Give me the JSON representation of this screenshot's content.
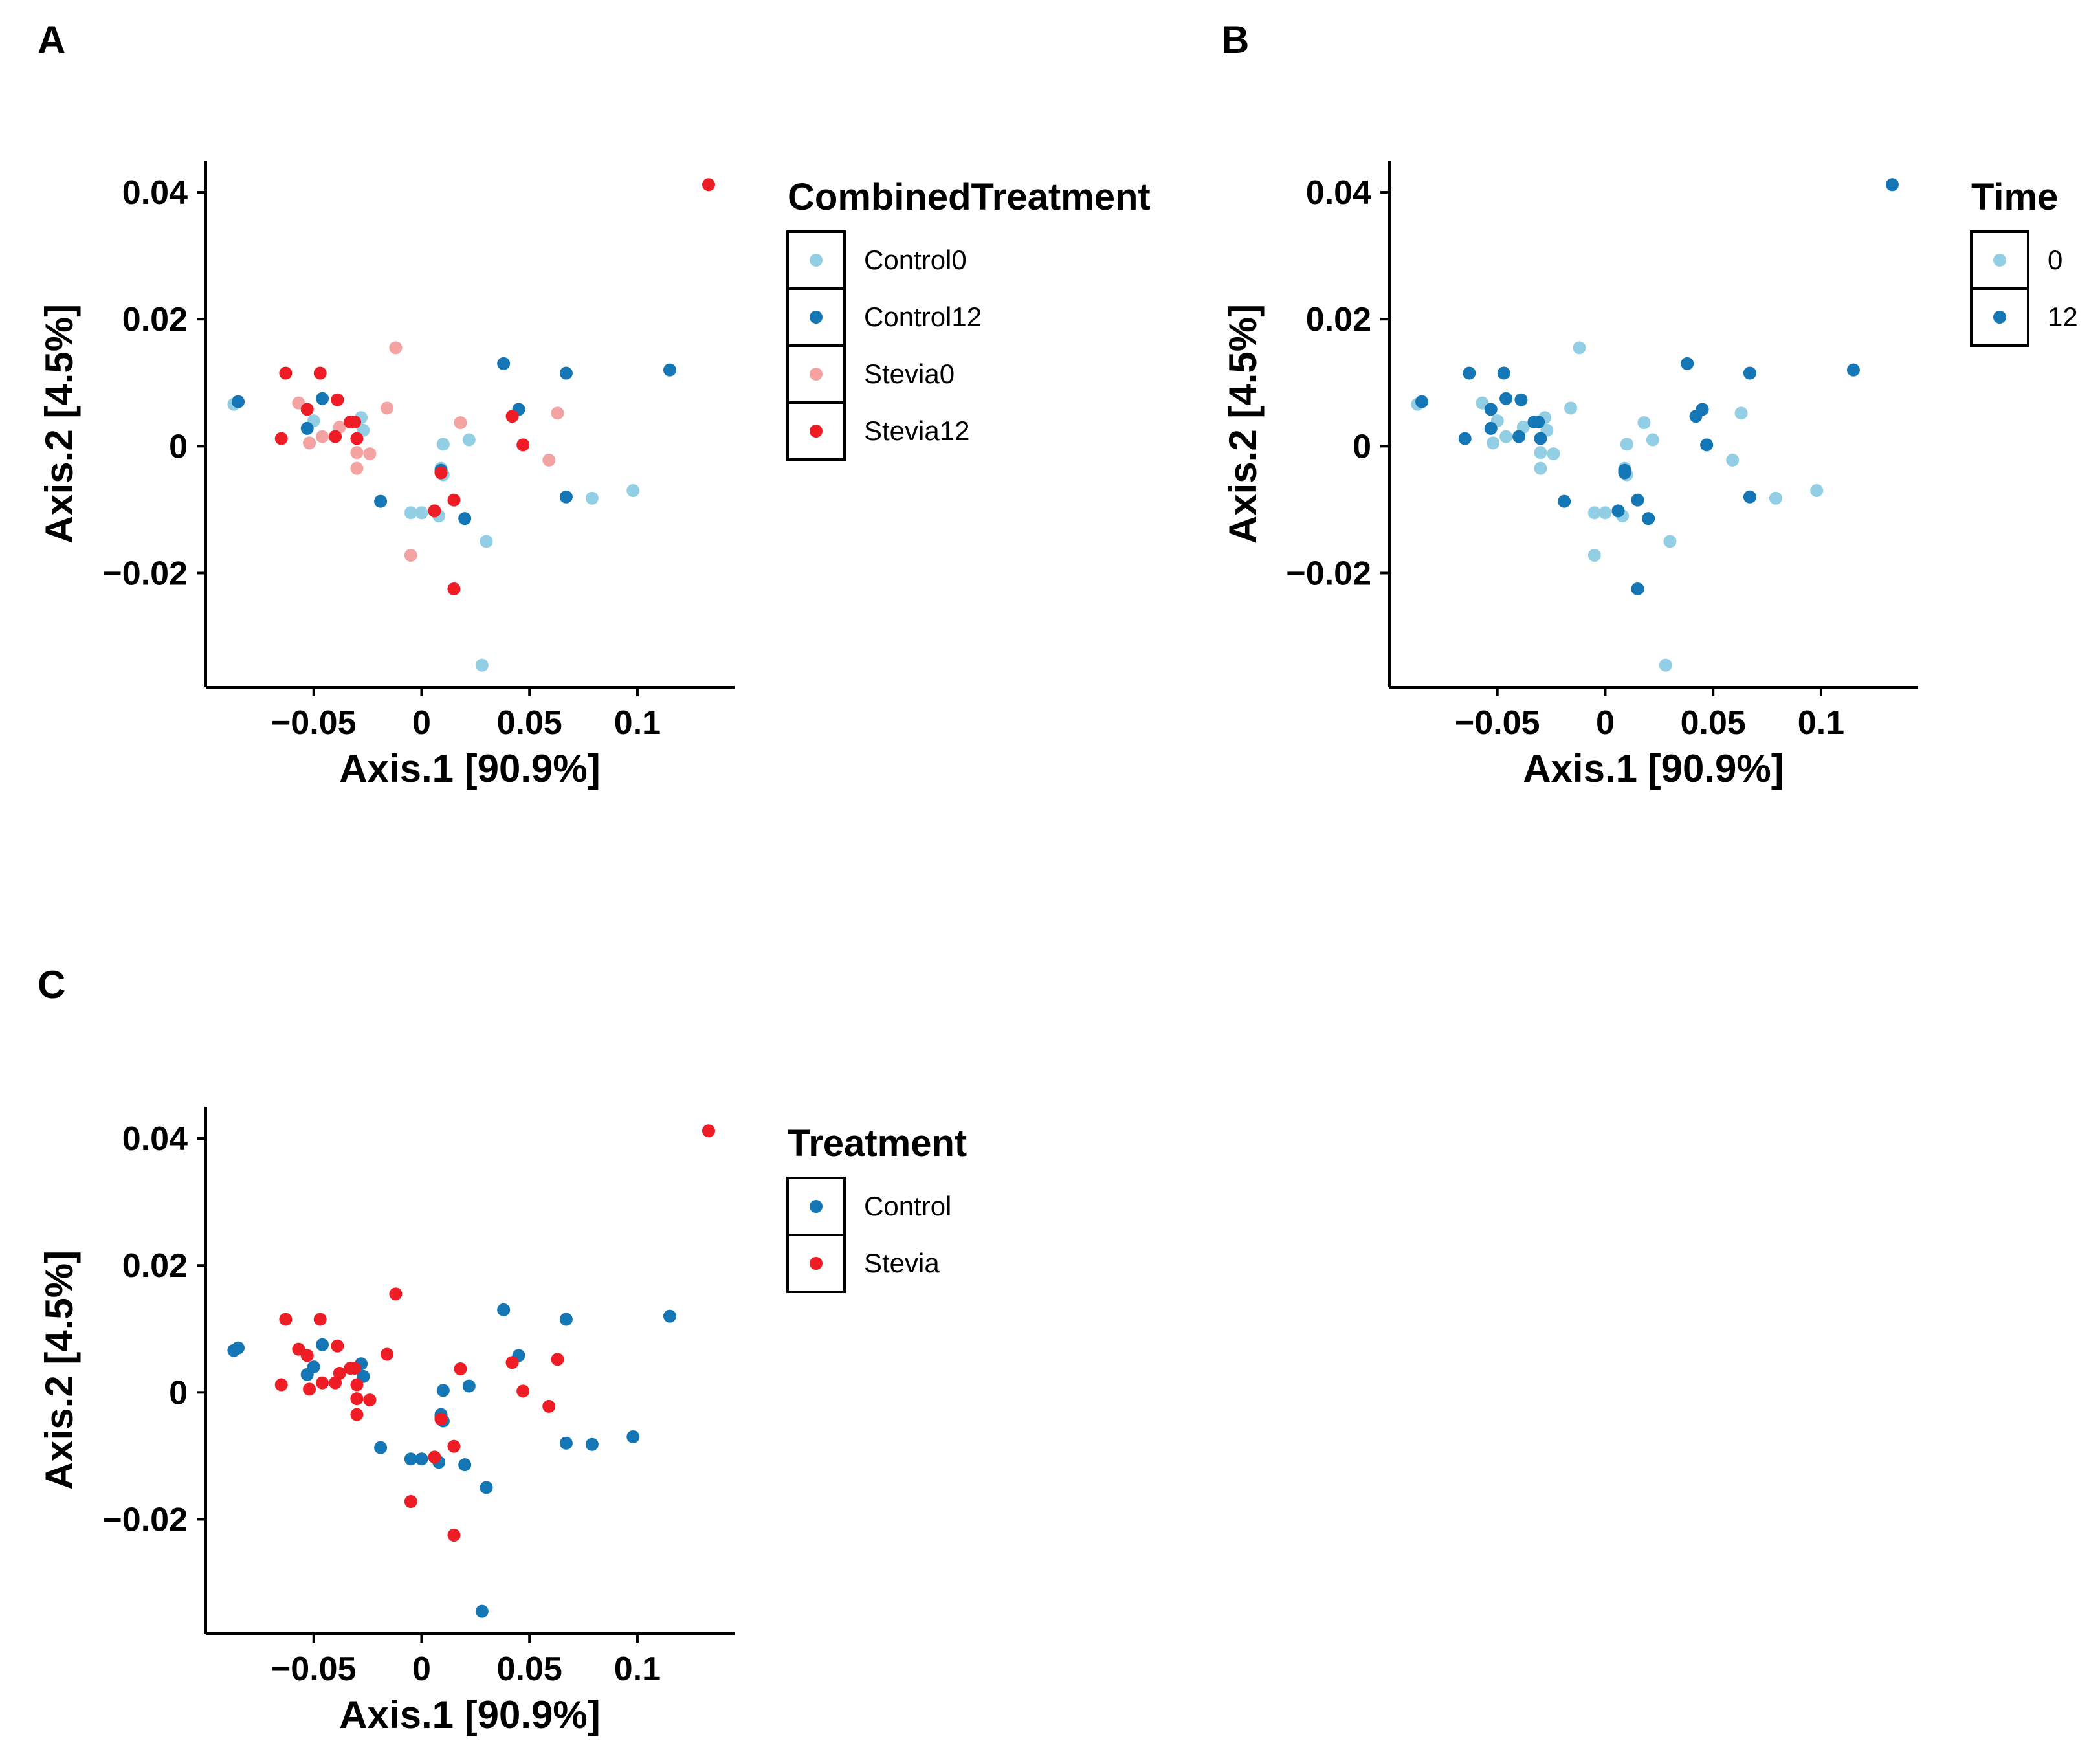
{
  "chart_data": [
    {
      "panel": "A",
      "type": "scatter",
      "xlabel": "Axis.1   [90.9%]",
      "ylabel": "Axis.2   [4.5%]",
      "xlim": [
        -0.1,
        0.145
      ],
      "ylim": [
        -0.038,
        0.045
      ],
      "xticks": [
        {
          "v": -0.05,
          "label": "−0.05"
        },
        {
          "v": 0,
          "label": "0"
        },
        {
          "v": 0.05,
          "label": "0.05"
        },
        {
          "v": 0.1,
          "label": "0.1"
        }
      ],
      "yticks": [
        {
          "v": -0.02,
          "label": "−0.02"
        },
        {
          "v": 0,
          "label": "0"
        },
        {
          "v": 0.02,
          "label": "0.02"
        },
        {
          "v": 0.04,
          "label": "0.04"
        }
      ],
      "legend_title": "CombinedTreatment",
      "series": [
        {
          "name": "Control0",
          "color": "#92cfe4",
          "points": [
            [
              -0.087,
              0.0066
            ],
            [
              -0.05,
              0.004
            ],
            [
              -0.028,
              0.0045
            ],
            [
              -0.027,
              0.0025
            ],
            [
              0.01,
              0.0003
            ],
            [
              0.022,
              0.001
            ],
            [
              -0.005,
              -0.0105
            ],
            [
              0.0,
              -0.0105
            ],
            [
              0.008,
              -0.011
            ],
            [
              0.009,
              -0.0035
            ],
            [
              0.01,
              -0.0045
            ],
            [
              0.03,
              -0.015
            ],
            [
              0.028,
              -0.0345
            ],
            [
              0.079,
              -0.0082
            ],
            [
              0.098,
              -0.007
            ]
          ]
        },
        {
          "name": "Control12",
          "color": "#1476b5",
          "points": [
            [
              -0.085,
              0.007
            ],
            [
              -0.046,
              0.0075
            ],
            [
              -0.053,
              0.0028
            ],
            [
              0.038,
              0.013
            ],
            [
              0.067,
              0.0115
            ],
            [
              0.115,
              0.012
            ],
            [
              0.045,
              0.0058
            ],
            [
              -0.019,
              -0.0087
            ],
            [
              0.009,
              -0.0038
            ],
            [
              0.02,
              -0.0114
            ],
            [
              0.067,
              -0.008
            ]
          ]
        },
        {
          "name": "Stevia0",
          "color": "#f4a3a3",
          "points": [
            [
              -0.057,
              0.0068
            ],
            [
              -0.052,
              0.0005
            ],
            [
              -0.046,
              0.0015
            ],
            [
              -0.038,
              0.003
            ],
            [
              -0.03,
              -0.001
            ],
            [
              -0.03,
              -0.0035
            ],
            [
              -0.024,
              -0.0012
            ],
            [
              -0.016,
              0.006
            ],
            [
              -0.012,
              0.0155
            ],
            [
              -0.005,
              -0.0172
            ],
            [
              0.018,
              0.0037
            ],
            [
              0.063,
              0.0052
            ],
            [
              0.059,
              -0.0022
            ]
          ]
        },
        {
          "name": "Stevia12",
          "color": "#ee1c24",
          "points": [
            [
              -0.065,
              0.0012
            ],
            [
              -0.063,
              0.0115
            ],
            [
              -0.053,
              0.0058
            ],
            [
              -0.047,
              0.0115
            ],
            [
              -0.04,
              0.0015
            ],
            [
              -0.039,
              0.0073
            ],
            [
              -0.033,
              0.0038
            ],
            [
              -0.03,
              0.0012
            ],
            [
              -0.031,
              0.0038
            ],
            [
              0.006,
              -0.0102
            ],
            [
              0.009,
              -0.0042
            ],
            [
              0.015,
              -0.0085
            ],
            [
              0.015,
              -0.0225
            ],
            [
              0.042,
              0.0047
            ],
            [
              0.047,
              0.0002
            ],
            [
              0.133,
              0.0412
            ]
          ]
        }
      ]
    },
    {
      "panel": "B",
      "type": "scatter",
      "xlabel": "Axis.1   [90.9%]",
      "ylabel": "Axis.2   [4.5%]",
      "xlim": [
        -0.1,
        0.145
      ],
      "ylim": [
        -0.038,
        0.045
      ],
      "xticks": [
        {
          "v": -0.05,
          "label": "−0.05"
        },
        {
          "v": 0,
          "label": "0"
        },
        {
          "v": 0.05,
          "label": "0.05"
        },
        {
          "v": 0.1,
          "label": "0.1"
        }
      ],
      "yticks": [
        {
          "v": -0.02,
          "label": "−0.02"
        },
        {
          "v": 0,
          "label": "0"
        },
        {
          "v": 0.02,
          "label": "0.02"
        },
        {
          "v": 0.04,
          "label": "0.04"
        }
      ],
      "legend_title": "Time",
      "series": [
        {
          "name": "0",
          "color": "#92cfe4",
          "points": [
            [
              -0.087,
              0.0066
            ],
            [
              -0.05,
              0.004
            ],
            [
              -0.028,
              0.0045
            ],
            [
              -0.027,
              0.0025
            ],
            [
              0.01,
              0.0003
            ],
            [
              0.022,
              0.001
            ],
            [
              -0.005,
              -0.0105
            ],
            [
              0.0,
              -0.0105
            ],
            [
              0.008,
              -0.011
            ],
            [
              0.009,
              -0.0035
            ],
            [
              0.01,
              -0.0045
            ],
            [
              0.03,
              -0.015
            ],
            [
              0.028,
              -0.0345
            ],
            [
              0.079,
              -0.0082
            ],
            [
              0.098,
              -0.007
            ],
            [
              -0.057,
              0.0068
            ],
            [
              -0.052,
              0.0005
            ],
            [
              -0.046,
              0.0015
            ],
            [
              -0.038,
              0.003
            ],
            [
              -0.03,
              -0.001
            ],
            [
              -0.03,
              -0.0035
            ],
            [
              -0.024,
              -0.0012
            ],
            [
              -0.016,
              0.006
            ],
            [
              -0.012,
              0.0155
            ],
            [
              -0.005,
              -0.0172
            ],
            [
              0.018,
              0.0037
            ],
            [
              0.063,
              0.0052
            ],
            [
              0.059,
              -0.0022
            ]
          ]
        },
        {
          "name": "12",
          "color": "#1476b5",
          "points": [
            [
              -0.085,
              0.007
            ],
            [
              -0.046,
              0.0075
            ],
            [
              -0.053,
              0.0028
            ],
            [
              0.038,
              0.013
            ],
            [
              0.067,
              0.0115
            ],
            [
              0.115,
              0.012
            ],
            [
              0.045,
              0.0058
            ],
            [
              -0.019,
              -0.0087
            ],
            [
              0.009,
              -0.0038
            ],
            [
              0.02,
              -0.0114
            ],
            [
              0.067,
              -0.008
            ],
            [
              -0.065,
              0.0012
            ],
            [
              -0.063,
              0.0115
            ],
            [
              -0.053,
              0.0058
            ],
            [
              -0.047,
              0.0115
            ],
            [
              -0.04,
              0.0015
            ],
            [
              -0.039,
              0.0073
            ],
            [
              -0.033,
              0.0038
            ],
            [
              -0.03,
              0.0012
            ],
            [
              -0.031,
              0.0038
            ],
            [
              0.006,
              -0.0102
            ],
            [
              0.009,
              -0.0042
            ],
            [
              0.015,
              -0.0085
            ],
            [
              0.015,
              -0.0225
            ],
            [
              0.042,
              0.0047
            ],
            [
              0.047,
              0.0002
            ],
            [
              0.133,
              0.0412
            ]
          ]
        }
      ]
    },
    {
      "panel": "C",
      "type": "scatter",
      "xlabel": "Axis.1   [90.9%]",
      "ylabel": "Axis.2   [4.5%]",
      "xlim": [
        -0.1,
        0.145
      ],
      "ylim": [
        -0.038,
        0.045
      ],
      "xticks": [
        {
          "v": -0.05,
          "label": "−0.05"
        },
        {
          "v": 0,
          "label": "0"
        },
        {
          "v": 0.05,
          "label": "0.05"
        },
        {
          "v": 0.1,
          "label": "0.1"
        }
      ],
      "yticks": [
        {
          "v": -0.02,
          "label": "−0.02"
        },
        {
          "v": 0,
          "label": "0"
        },
        {
          "v": 0.02,
          "label": "0.02"
        },
        {
          "v": 0.04,
          "label": "0.04"
        }
      ],
      "legend_title": "Treatment",
      "series": [
        {
          "name": "Control",
          "color": "#1476b5",
          "points": [
            [
              -0.087,
              0.0066
            ],
            [
              -0.05,
              0.004
            ],
            [
              -0.028,
              0.0045
            ],
            [
              -0.027,
              0.0025
            ],
            [
              0.01,
              0.0003
            ],
            [
              0.022,
              0.001
            ],
            [
              -0.005,
              -0.0105
            ],
            [
              0.0,
              -0.0105
            ],
            [
              0.008,
              -0.011
            ],
            [
              0.009,
              -0.0035
            ],
            [
              0.01,
              -0.0045
            ],
            [
              0.03,
              -0.015
            ],
            [
              0.028,
              -0.0345
            ],
            [
              0.079,
              -0.0082
            ],
            [
              0.098,
              -0.007
            ],
            [
              -0.085,
              0.007
            ],
            [
              -0.046,
              0.0075
            ],
            [
              -0.053,
              0.0028
            ],
            [
              0.038,
              0.013
            ],
            [
              0.067,
              0.0115
            ],
            [
              0.115,
              0.012
            ],
            [
              0.045,
              0.0058
            ],
            [
              -0.019,
              -0.0087
            ],
            [
              0.009,
              -0.0038
            ],
            [
              0.02,
              -0.0114
            ],
            [
              0.067,
              -0.008
            ]
          ]
        },
        {
          "name": "Stevia",
          "color": "#ee1c24",
          "points": [
            [
              -0.057,
              0.0068
            ],
            [
              -0.052,
              0.0005
            ],
            [
              -0.046,
              0.0015
            ],
            [
              -0.038,
              0.003
            ],
            [
              -0.03,
              -0.001
            ],
            [
              -0.03,
              -0.0035
            ],
            [
              -0.024,
              -0.0012
            ],
            [
              -0.016,
              0.006
            ],
            [
              -0.012,
              0.0155
            ],
            [
              -0.005,
              -0.0172
            ],
            [
              0.018,
              0.0037
            ],
            [
              0.063,
              0.0052
            ],
            [
              0.059,
              -0.0022
            ],
            [
              -0.065,
              0.0012
            ],
            [
              -0.063,
              0.0115
            ],
            [
              -0.053,
              0.0058
            ],
            [
              -0.047,
              0.0115
            ],
            [
              -0.04,
              0.0015
            ],
            [
              -0.039,
              0.0073
            ],
            [
              -0.033,
              0.0038
            ],
            [
              -0.03,
              0.0012
            ],
            [
              -0.031,
              0.0038
            ],
            [
              0.006,
              -0.0102
            ],
            [
              0.009,
              -0.0042
            ],
            [
              0.015,
              -0.0085
            ],
            [
              0.015,
              -0.0225
            ],
            [
              0.042,
              0.0047
            ],
            [
              0.047,
              0.0002
            ],
            [
              0.133,
              0.0412
            ]
          ]
        }
      ]
    }
  ]
}
